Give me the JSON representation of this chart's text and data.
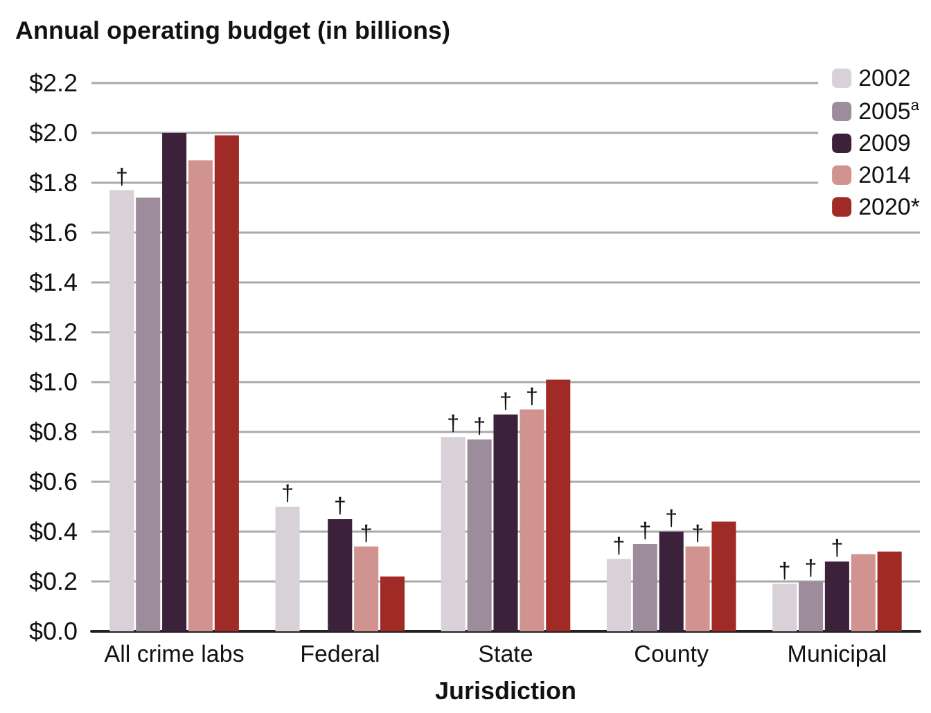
{
  "chart_data": {
    "type": "bar",
    "title": "Annual operating budget (in billions)",
    "xlabel": "Jurisdiction",
    "categories": [
      "All crime labs",
      "Federal",
      "State",
      "County",
      "Municipal"
    ],
    "series": [
      {
        "name": "2002",
        "color": "#d8d1d8",
        "values": [
          1.77,
          0.5,
          0.78,
          0.29,
          0.19
        ],
        "value_labels": [
          "†",
          "†",
          "†",
          "†",
          "†"
        ]
      },
      {
        "name": "2005$^{a}$",
        "color": "#9d8d9c",
        "values": [
          1.74,
          null,
          0.77,
          0.35,
          0.2
        ],
        "value_labels": [
          null,
          null,
          "†",
          "†",
          "†"
        ]
      },
      {
        "name": "2009",
        "color": "#3c213b",
        "values": [
          2.0,
          0.45,
          0.87,
          0.4,
          0.28
        ],
        "value_labels": [
          null,
          "†",
          "†",
          "†",
          "†"
        ]
      },
      {
        "name": "2014",
        "color": "#d09390",
        "values": [
          1.89,
          0.34,
          0.89,
          0.34,
          0.31
        ],
        "value_labels": [
          null,
          "†",
          "†",
          "†",
          null
        ]
      },
      {
        "name": "2020*",
        "color": "#a02a25",
        "values": [
          1.99,
          0.22,
          1.01,
          0.44,
          0.32
        ],
        "value_labels": [
          null,
          null,
          null,
          null,
          null
        ]
      }
    ],
    "ylim": [
      0,
      2.2
    ],
    "yticks": [
      {
        "value": 0,
        "label": "$0.0"
      },
      {
        "value": 0.2,
        "label": "$0.2"
      },
      {
        "value": 0.4,
        "label": "$0.4"
      },
      {
        "value": 0.6,
        "label": "$0.6"
      },
      {
        "value": 0.8,
        "label": "$0.8"
      },
      {
        "value": 1.0,
        "label": "$1.0"
      },
      {
        "value": 1.2,
        "label": "$1.2"
      },
      {
        "value": 1.4,
        "label": "$1.4"
      },
      {
        "value": 1.6,
        "label": "$1.6"
      },
      {
        "value": 1.8,
        "label": "$1.8"
      },
      {
        "value": 2.0,
        "label": "$2.0"
      },
      {
        "value": 2.2,
        "label": "$2.2"
      }
    ],
    "grid": "y",
    "legend": "top right"
  }
}
